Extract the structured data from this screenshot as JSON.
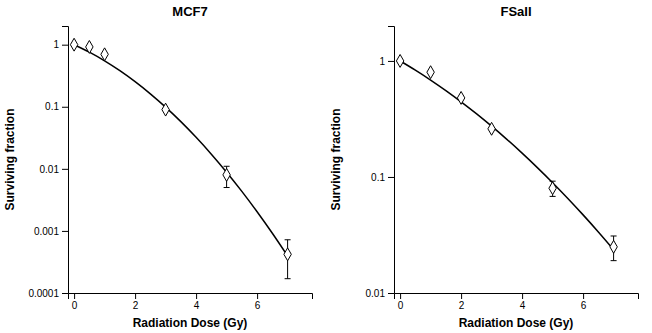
{
  "chart_data": [
    {
      "type": "scatter",
      "title": "MCF7",
      "x_label": "Radiation Dose (Gy)",
      "y_label": "Surviving fraction",
      "log": "y",
      "grid": false,
      "xlim": [
        -0.2,
        7.8
      ],
      "xticks": [
        0,
        2,
        4,
        6
      ],
      "ylim": [
        0.0001,
        2.0
      ],
      "yticks": [
        0.0001,
        0.001,
        0.01,
        0.1,
        1
      ],
      "series": [
        {
          "type": "line",
          "color": "#000000",
          "line_style": "solid",
          "x": [
            0,
            0.5,
            1,
            1.5,
            2,
            2.5,
            3,
            3.5,
            4,
            4.5,
            5,
            5.5,
            6,
            6.5,
            7
          ],
          "values": [
            1,
            0.7576,
            0.5496,
            0.3817,
            0.2539,
            0.1617,
            0.09859,
            0.05756,
            0.03218,
            0.01723,
            0.008831,
            0.004334,
            0.002037,
            0.0009167,
            0.000395
          ]
        },
        {
          "type": "scatter",
          "color": "#000000",
          "marker": "diamond",
          "x": [
            0,
            0.5,
            1,
            3,
            5,
            7
          ],
          "values": [
            1.0,
            0.92,
            0.7,
            0.09,
            0.008,
            0.00042
          ],
          "error_low": [
            0,
            0,
            0,
            0,
            0.003,
            0.00025
          ],
          "error_high": [
            0,
            0,
            0,
            0,
            0.003,
            0.0003
          ]
        }
      ]
    },
    {
      "type": "scatter",
      "title": "FSaII",
      "x_label": "Radiation Dose (Gy)",
      "y_label": "Surviving fraction",
      "log": "y",
      "grid": false,
      "xlim": [
        -0.2,
        7.8
      ],
      "xticks": [
        0,
        2,
        4,
        6
      ],
      "ylim": [
        0.01,
        2.0
      ],
      "yticks": [
        0.01,
        0.1,
        1
      ],
      "series": [
        {
          "type": "line",
          "color": "#000000",
          "line_style": "solid",
          "x": [
            0,
            0.5,
            1,
            1.5,
            2,
            2.5,
            3,
            3.5,
            4,
            4.5,
            5,
            5.5,
            6,
            6.5,
            7
          ],
          "values": [
            1,
            0.8323,
            0.6839,
            0.5547,
            0.4441,
            0.351,
            0.2739,
            0.211,
            0.1604,
            0.1204,
            0.08923,
            0.06527,
            0.04713,
            0.0336,
            0.02364
          ]
        },
        {
          "type": "scatter",
          "color": "#000000",
          "marker": "diamond",
          "x": [
            0,
            1,
            2,
            3,
            5,
            7
          ],
          "values": [
            1.0,
            0.8,
            0.48,
            0.26,
            0.08,
            0.025
          ],
          "error_low": [
            0,
            0,
            0,
            0,
            0.012,
            0.006
          ],
          "error_high": [
            0,
            0,
            0,
            0,
            0.012,
            0.006
          ]
        }
      ]
    }
  ]
}
